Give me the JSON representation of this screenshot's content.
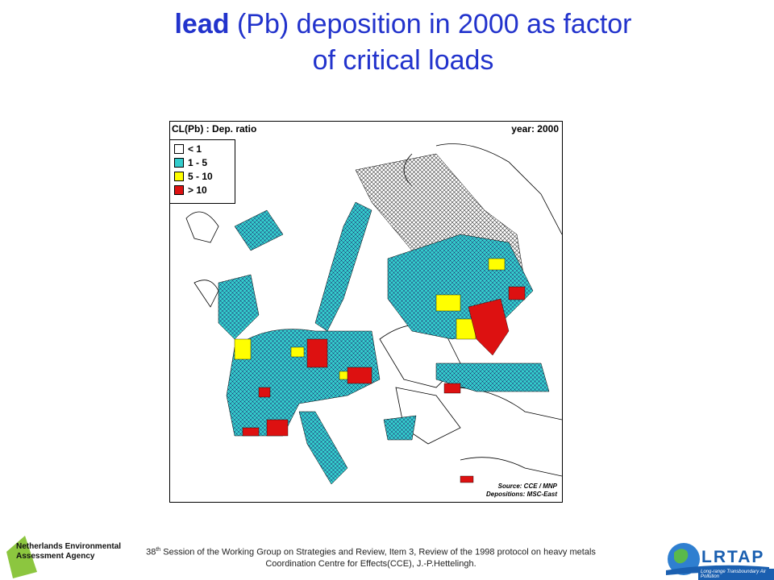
{
  "title": {
    "bold": "lead",
    "rest_line1": " (Pb) deposition in 2000 as factor",
    "line2": "of critical loads"
  },
  "map": {
    "header_left": "CL(Pb) : Dep. ratio",
    "header_right": "year: 2000",
    "legend": [
      {
        "label": "< 1",
        "color": "#ffffff"
      },
      {
        "label": "1 - 5",
        "color": "#33cccc"
      },
      {
        "label": "5 - 10",
        "color": "#ffff00"
      },
      {
        "label": "> 10",
        "color": "#dd1111"
      }
    ],
    "source": "Source: CCE / MNP",
    "depositions": "Depositions: MSC-East",
    "colors": {
      "hatch": "#333333",
      "land": "#ffffff",
      "sea": "#ffffff"
    }
  },
  "footer": {
    "ordinal": "38",
    "ordinal_sup": "th",
    "line1": " Session of the Working Group on Strategies and Review, Item 3, Review of the 1998 protocol on heavy metals",
    "line2": "Coordination Centre for Effects(CCE),  J.-P.Hettelingh."
  },
  "logos": {
    "nea_line1": "Netherlands Environmental",
    "nea_line2": "Assessment Agency",
    "lrtap": "LRTAP",
    "lrtap_sub": "Long-range Transboundary Air Pollution"
  }
}
